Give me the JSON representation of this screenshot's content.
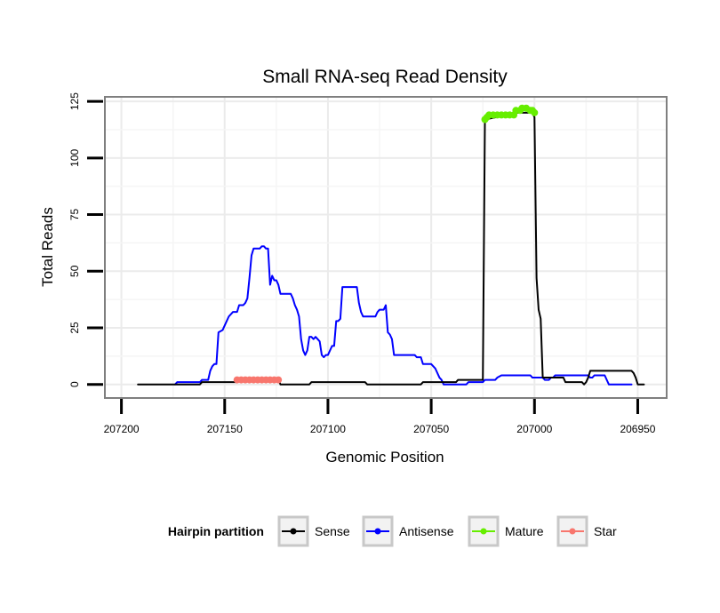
{
  "chart_data": {
    "type": "line",
    "title": "Small RNA-seq Read Density",
    "xlabel": "Genomic Position",
    "ylabel": "Total Reads",
    "xlim": [
      207208,
      206936
    ],
    "ylim": [
      -6,
      127
    ],
    "x_reversed": true,
    "x_ticks": [
      207200,
      207150,
      207100,
      207050,
      207000,
      206950
    ],
    "x_tick_labels": [
      "207200",
      "207150",
      "207100",
      "207050",
      "207000",
      "206950"
    ],
    "y_ticks": [
      0,
      25,
      50,
      75,
      100,
      125
    ],
    "y_tick_labels": [
      "0",
      "25",
      "50",
      "75",
      "100",
      "125"
    ],
    "legend": {
      "title": "Hairpin partition",
      "position": "bottom",
      "entries": [
        {
          "name": "Sense",
          "color": "#000000"
        },
        {
          "name": "Antisense",
          "color": "#0000ff"
        },
        {
          "name": "Mature",
          "color": "#66ee00"
        },
        {
          "name": "Star",
          "color": "#f8766d"
        }
      ]
    },
    "series": [
      {
        "name": "Sense",
        "color": "#000000",
        "markers": false,
        "points": [
          [
            207192,
            0
          ],
          [
            207162,
            0
          ],
          [
            207161,
            1
          ],
          [
            207144,
            1
          ],
          [
            207143,
            2
          ],
          [
            207124,
            2
          ],
          [
            207123,
            0
          ],
          [
            207109,
            0
          ],
          [
            207108,
            1
          ],
          [
            207082,
            1
          ],
          [
            207081,
            0
          ],
          [
            207055,
            0
          ],
          [
            207054,
            1
          ],
          [
            207038,
            1
          ],
          [
            207037,
            2
          ],
          [
            207025,
            2
          ],
          [
            207024,
            117
          ],
          [
            207008,
            120
          ],
          [
            207001,
            120
          ],
          [
            207000,
            118
          ],
          [
            206999,
            47
          ],
          [
            206998,
            33
          ],
          [
            206997,
            29
          ],
          [
            206996,
            3
          ],
          [
            206986,
            3
          ],
          [
            206985,
            1
          ],
          [
            206977,
            1
          ],
          [
            206976,
            0
          ],
          [
            206975,
            1
          ],
          [
            206974,
            3
          ],
          [
            206973,
            6
          ],
          [
            206953,
            6
          ],
          [
            206952,
            5
          ],
          [
            206951,
            3
          ],
          [
            206950,
            0
          ],
          [
            206947,
            0
          ]
        ]
      },
      {
        "name": "Antisense",
        "color": "#0000ff",
        "markers": false,
        "points": [
          [
            207174,
            0
          ],
          [
            207173,
            1
          ],
          [
            207162,
            1
          ],
          [
            207161,
            2
          ],
          [
            207158,
            2
          ],
          [
            207157,
            6
          ],
          [
            207156,
            8
          ],
          [
            207155,
            9
          ],
          [
            207154,
            9
          ],
          [
            207153,
            23
          ],
          [
            207151,
            24
          ],
          [
            207150,
            26
          ],
          [
            207148,
            30
          ],
          [
            207146,
            32
          ],
          [
            207144,
            32
          ],
          [
            207143,
            35
          ],
          [
            207141,
            35
          ],
          [
            207140,
            36
          ],
          [
            207139,
            38
          ],
          [
            207138,
            47
          ],
          [
            207137,
            57
          ],
          [
            207136,
            60
          ],
          [
            207133,
            60
          ],
          [
            207132,
            61
          ],
          [
            207131,
            61
          ],
          [
            207130,
            60
          ],
          [
            207129,
            60
          ],
          [
            207128,
            44
          ],
          [
            207127,
            48
          ],
          [
            207126,
            46
          ],
          [
            207125,
            46
          ],
          [
            207124,
            44
          ],
          [
            207123,
            40
          ],
          [
            207118,
            40
          ],
          [
            207117,
            38
          ],
          [
            207116,
            35
          ],
          [
            207115,
            33
          ],
          [
            207114,
            30
          ],
          [
            207113,
            20
          ],
          [
            207112,
            15
          ],
          [
            207111,
            13
          ],
          [
            207110,
            15
          ],
          [
            207109,
            21
          ],
          [
            207108,
            21
          ],
          [
            207107,
            20
          ],
          [
            207106,
            21
          ],
          [
            207105,
            20
          ],
          [
            207104,
            19
          ],
          [
            207103,
            13
          ],
          [
            207102,
            12
          ],
          [
            207101,
            13
          ],
          [
            207100,
            13
          ],
          [
            207099,
            15
          ],
          [
            207098,
            17
          ],
          [
            207097,
            17
          ],
          [
            207096,
            28
          ],
          [
            207095,
            28
          ],
          [
            207094,
            29
          ],
          [
            207093,
            43
          ],
          [
            207086,
            43
          ],
          [
            207085,
            36
          ],
          [
            207084,
            32
          ],
          [
            207083,
            30
          ],
          [
            207082,
            30
          ],
          [
            207077,
            30
          ],
          [
            207076,
            32
          ],
          [
            207075,
            33
          ],
          [
            207073,
            33
          ],
          [
            207072,
            35
          ],
          [
            207071,
            23
          ],
          [
            207070,
            22
          ],
          [
            207069,
            20
          ],
          [
            207068,
            13
          ],
          [
            207058,
            13
          ],
          [
            207057,
            12
          ],
          [
            207055,
            12
          ],
          [
            207054,
            9
          ],
          [
            207050,
            9
          ],
          [
            207049,
            8
          ],
          [
            207048,
            7
          ],
          [
            207046,
            3
          ],
          [
            207045,
            2
          ],
          [
            207044,
            0
          ],
          [
            207033,
            0
          ],
          [
            207032,
            1
          ],
          [
            207025,
            1
          ],
          [
            207024,
            2
          ],
          [
            207019,
            2
          ],
          [
            207018,
            3
          ],
          [
            207016,
            4
          ],
          [
            207002,
            4
          ],
          [
            207001,
            3
          ],
          [
            206996,
            3
          ],
          [
            206995,
            2
          ],
          [
            206993,
            2
          ],
          [
            206992,
            3
          ],
          [
            206991,
            3
          ],
          [
            206990,
            4
          ],
          [
            206974,
            4
          ],
          [
            206973,
            3
          ],
          [
            206972,
            3
          ],
          [
            206971,
            4
          ],
          [
            206966,
            4
          ],
          [
            206965,
            2
          ],
          [
            206964,
            0
          ],
          [
            206953,
            0
          ]
        ]
      },
      {
        "name": "Mature",
        "color": "#66ee00",
        "markers": true,
        "points": [
          [
            207024,
            117
          ],
          [
            207023,
            118
          ],
          [
            207022,
            119
          ],
          [
            207020,
            119
          ],
          [
            207018,
            119
          ],
          [
            207016,
            119
          ],
          [
            207014,
            119
          ],
          [
            207012,
            119
          ],
          [
            207010,
            119
          ],
          [
            207009,
            121
          ],
          [
            207007,
            121
          ],
          [
            207006,
            122
          ],
          [
            207004,
            122
          ],
          [
            207002,
            121
          ],
          [
            207001,
            121
          ],
          [
            207000,
            120
          ]
        ]
      },
      {
        "name": "Star",
        "color": "#f8766d",
        "markers": true,
        "points": [
          [
            207144,
            2
          ],
          [
            207142,
            2
          ],
          [
            207140,
            2
          ],
          [
            207138,
            2
          ],
          [
            207136,
            2
          ],
          [
            207134,
            2
          ],
          [
            207132,
            2
          ],
          [
            207130,
            2
          ],
          [
            207128,
            2
          ],
          [
            207126,
            2
          ],
          [
            207124,
            2
          ]
        ]
      }
    ]
  }
}
